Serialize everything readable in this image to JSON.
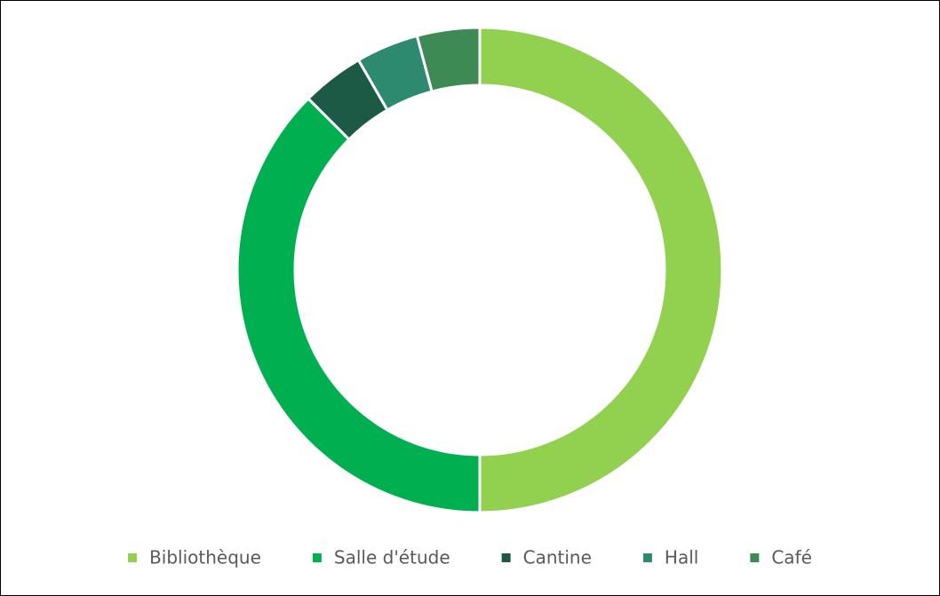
{
  "chart_data": {
    "type": "donut",
    "categories": [
      "Bibliothèque",
      "Salle d'étude",
      "Cantine",
      "Hall",
      "Café"
    ],
    "values": [
      12,
      9,
      1,
      1,
      1
    ],
    "colors": [
      "#92d050",
      "#00b050",
      "#1d5a45",
      "#2e8a6e",
      "#3e8a55"
    ],
    "legend": "bottom"
  }
}
